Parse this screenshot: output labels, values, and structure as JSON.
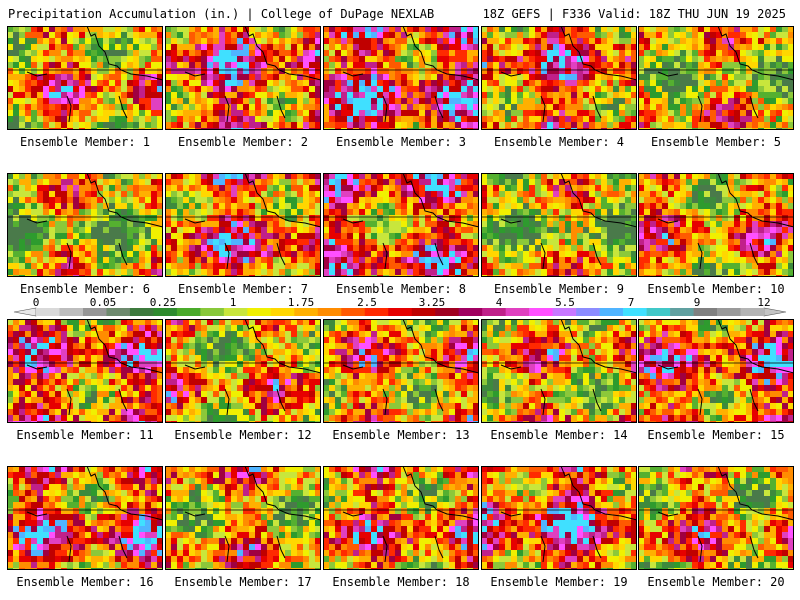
{
  "header": {
    "title": "Precipitation Accumulation (in.) | College of DuPage NEXLAB",
    "valid": "18Z GEFS | F336 Valid: 18Z THU JUN 19 2025"
  },
  "members": [
    {
      "label": "Ensemble Member: 1",
      "wetness": 0.45,
      "seed": 11
    },
    {
      "label": "Ensemble Member: 2",
      "wetness": 0.6,
      "seed": 23
    },
    {
      "label": "Ensemble Member: 3",
      "wetness": 0.62,
      "seed": 37
    },
    {
      "label": "Ensemble Member: 4",
      "wetness": 0.55,
      "seed": 41
    },
    {
      "label": "Ensemble Member: 5",
      "wetness": 0.35,
      "seed": 53
    },
    {
      "label": "Ensemble Member: 6",
      "wetness": 0.3,
      "seed": 61
    },
    {
      "label": "Ensemble Member: 7",
      "wetness": 0.55,
      "seed": 73
    },
    {
      "label": "Ensemble Member: 8",
      "wetness": 0.55,
      "seed": 89
    },
    {
      "label": "Ensemble Member: 9",
      "wetness": 0.3,
      "seed": 97
    },
    {
      "label": "Ensemble Member: 10",
      "wetness": 0.45,
      "seed": 101
    },
    {
      "label": "Ensemble Member: 11",
      "wetness": 0.55,
      "seed": 113
    },
    {
      "label": "Ensemble Member: 12",
      "wetness": 0.4,
      "seed": 127
    },
    {
      "label": "Ensemble Member: 13",
      "wetness": 0.45,
      "seed": 131
    },
    {
      "label": "Ensemble Member: 14",
      "wetness": 0.42,
      "seed": 149
    },
    {
      "label": "Ensemble Member: 15",
      "wetness": 0.55,
      "seed": 157
    },
    {
      "label": "Ensemble Member: 16",
      "wetness": 0.55,
      "seed": 163
    },
    {
      "label": "Ensemble Member: 17",
      "wetness": 0.4,
      "seed": 179
    },
    {
      "label": "Ensemble Member: 18",
      "wetness": 0.5,
      "seed": 181
    },
    {
      "label": "Ensemble Member: 19",
      "wetness": 0.62,
      "seed": 191
    },
    {
      "label": "Ensemble Member: 20",
      "wetness": 0.45,
      "seed": 199
    }
  ],
  "legend": {
    "tick_labels": [
      "0",
      "0.05",
      "0.25",
      "1",
      "1.75",
      "2.5",
      "3.25",
      "4",
      "5.5",
      "7",
      "9",
      "12"
    ],
    "colors": [
      "#d9d9d9",
      "#bdbdbd",
      "#969696",
      "#6e8a6e",
      "#3d7a3d",
      "#2e8b2e",
      "#4aaa2a",
      "#88c83a",
      "#c8e63c",
      "#f0f000",
      "#ffd700",
      "#ffb000",
      "#ff8c00",
      "#ff5a00",
      "#ff2a00",
      "#e60000",
      "#c00000",
      "#a00020",
      "#a00060",
      "#c0208a",
      "#e040c0",
      "#ff50ff",
      "#c878ff",
      "#8c8cff",
      "#50b4ff",
      "#40e0ff",
      "#40c8c8",
      "#60a0a0",
      "#808080",
      "#9a9a9a",
      "#b4b4b4"
    ]
  }
}
